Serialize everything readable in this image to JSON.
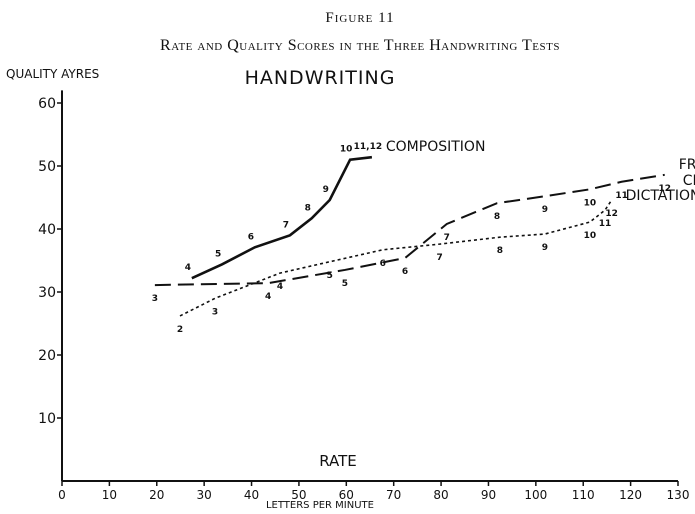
{
  "chart_data": {
    "type": "line",
    "figure_label": "Figure 11",
    "title": "Rate and Quality Scores in the Three Handwriting Tests",
    "subtitle": "HANDWRITING",
    "y_label": "QUALITY AYRES",
    "x_label": "RATE",
    "x_sublabel": "LETTERS PER MINUTE",
    "xlim": [
      0,
      130
    ],
    "ylim": [
      0,
      62
    ],
    "xticks": [
      0,
      10,
      20,
      30,
      40,
      50,
      60,
      70,
      80,
      90,
      100,
      110,
      120,
      130
    ],
    "yticks": [
      10,
      20,
      30,
      40,
      50,
      60
    ],
    "series": [
      {
        "name": "COMPOSITION",
        "color": "#111111",
        "style": "solid",
        "x": [
          27.4,
          33.8,
          40.7,
          48.1,
          52.7,
          56.5,
          60.8,
          65.4
        ],
        "values": [
          32.2,
          34.4,
          37.1,
          39.0,
          41.7,
          44.6,
          51.0,
          51.4
        ],
        "point_labels": [
          "4",
          "5",
          "6",
          "7",
          "8",
          "9",
          "10",
          "11,12"
        ]
      },
      {
        "name": "FREE CHOICE",
        "color": "#111111",
        "style": "dashed",
        "x": [
          19.6,
          43.5,
          59.7,
          72.4,
          81.2,
          91.8,
          101.9,
          111.4,
          118.1,
          127.2
        ],
        "values": [
          31.1,
          31.4,
          33.5,
          35.4,
          40.8,
          44.1,
          45.2,
          46.3,
          47.5,
          48.6
        ],
        "point_labels": [
          "3",
          "4",
          "5",
          "6",
          "7",
          "8",
          "9",
          "10",
          "11",
          "12"
        ]
      },
      {
        "name": "DICTATION",
        "color": "#111111",
        "style": "dotted",
        "x": [
          24.9,
          32.3,
          46.0,
          56.5,
          67.7,
          79.7,
          92.4,
          101.9,
          111.4,
          114.6,
          116.0
        ],
        "values": [
          26.2,
          29.0,
          33.0,
          34.8,
          36.7,
          37.6,
          38.7,
          39.2,
          41.1,
          43.0,
          44.6
        ],
        "point_labels": [
          "2",
          "3",
          "4",
          "5",
          "6",
          "7",
          "8",
          "9",
          "10",
          "11",
          "12"
        ]
      }
    ]
  }
}
